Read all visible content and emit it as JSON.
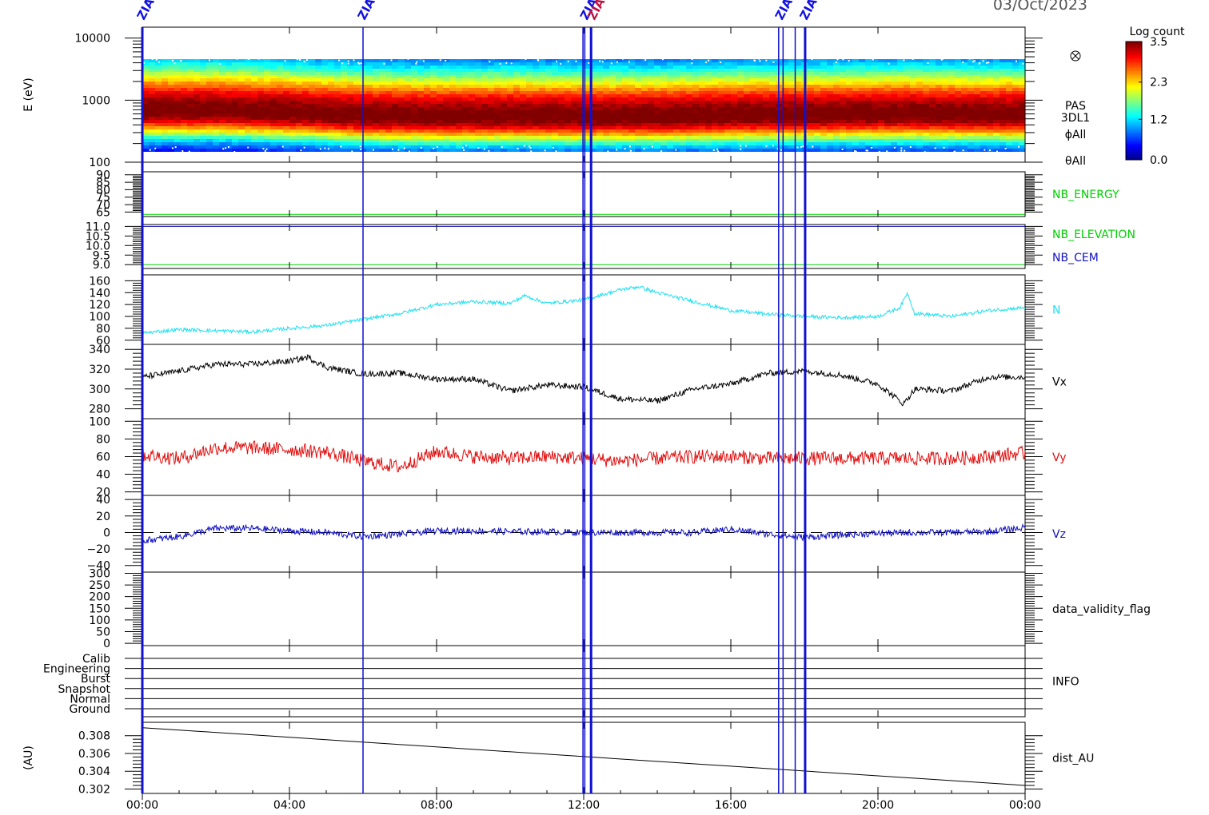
{
  "header": {
    "date": "03/Oct/2023"
  },
  "x_axis": {
    "tick_labels": [
      "00:00",
      "04:00",
      "08:00",
      "12:00",
      "16:00",
      "20:00",
      "00:00"
    ],
    "hours": [
      0,
      4,
      8,
      12,
      16,
      20,
      24
    ],
    "range_hours": [
      0,
      24
    ]
  },
  "markers": {
    "lines_hours": [
      0,
      6,
      11.98,
      12.03,
      12.2,
      17.3,
      17.42,
      17.75,
      18.02
    ],
    "labels": [
      {
        "hour": 0,
        "text": "ZIAS",
        "color": "#1010e0"
      },
      {
        "hour": 6,
        "text": "ZIAS",
        "color": "#1010e0"
      },
      {
        "hour": 12.05,
        "text": "ZIAS",
        "color": "#1010e0"
      },
      {
        "hour": 12.25,
        "text": "ZIAS",
        "color": "#c01040"
      },
      {
        "hour": 17.35,
        "text": "ZIAS",
        "color": "#1010e0"
      },
      {
        "hour": 18.02,
        "text": "ZIAS",
        "color": "#1010e0"
      }
    ]
  },
  "colorbar": {
    "title": "Log count",
    "tick_labels": [
      "3.5",
      "2.3",
      "1.2",
      "0.0"
    ],
    "range": [
      0.0,
      3.5
    ]
  },
  "chart_data": [
    {
      "type": "heatmap",
      "ylabel": "E (eV)",
      "yscale": "log",
      "ylim": [
        100,
        15000
      ],
      "y_tick_labels": [
        "10000",
        "1000",
        "100"
      ],
      "y_ticks": [
        10000,
        1000,
        100
      ],
      "right_labels": [
        "PAS",
        "3DL1",
        "ϕAll",
        "θAll"
      ],
      "peak_energy_eV": {
        "hours": [
          0,
          2,
          4,
          6,
          8,
          10,
          12,
          14,
          16,
          18,
          20,
          22,
          24
        ],
        "values": [
          700,
          700,
          650,
          580,
          560,
          570,
          560,
          560,
          590,
          600,
          620,
          610,
          600
        ]
      },
      "band_eV": [
        150,
        5000
      ]
    },
    {
      "type": "line",
      "right_label": "NB_ENERGY",
      "right_label_color": "#00d000",
      "ylim": [
        62,
        92
      ],
      "y_tick_labels": [
        "90",
        "85",
        "80",
        "75",
        "70",
        "65"
      ],
      "y_ticks": [
        90,
        85,
        80,
        75,
        70,
        65
      ],
      "series": [
        {
          "color": "#00d000",
          "x": [
            0,
            24
          ],
          "y": [
            63.5,
            63.5
          ]
        }
      ]
    },
    {
      "type": "line",
      "right_labels": [
        {
          "text": "NB_ELEVATION",
          "color": "#00d000"
        },
        {
          "text": "NB_CEM",
          "color": "#1010c0"
        }
      ],
      "ylim": [
        8.8,
        11.1
      ],
      "y_tick_labels": [
        "11.0",
        "10.5",
        "10.0",
        "9.5",
        "9.0"
      ],
      "y_ticks": [
        11.0,
        10.5,
        10.0,
        9.5,
        9.0
      ],
      "series": [
        {
          "color": "#1010c0",
          "x": [
            0,
            24
          ],
          "y": [
            11.0,
            11.0
          ]
        },
        {
          "color": "#00d000",
          "x": [
            0,
            24
          ],
          "y": [
            9.0,
            9.0
          ]
        }
      ]
    },
    {
      "type": "line",
      "right_label": "N",
      "right_label_color": "#20e0f0",
      "ylim": [
        53,
        170
      ],
      "y_tick_labels": [
        "160",
        "140",
        "120",
        "100",
        "80",
        "60"
      ],
      "y_ticks": [
        160,
        140,
        120,
        100,
        80,
        60
      ],
      "series": [
        {
          "color": "#20e0f0",
          "noise": 3,
          "x": [
            0,
            1,
            2,
            3,
            4,
            5,
            6,
            7,
            8,
            9,
            10,
            10.4,
            11,
            12,
            13,
            13.5,
            14,
            15,
            16,
            17,
            18,
            19,
            20,
            20.6,
            20.8,
            21,
            22,
            23,
            24
          ],
          "y": [
            72,
            78,
            76,
            74,
            80,
            85,
            95,
            105,
            120,
            125,
            122,
            135,
            122,
            128,
            145,
            150,
            140,
            125,
            110,
            104,
            100,
            98,
            100,
            115,
            140,
            105,
            100,
            110,
            115
          ]
        }
      ]
    },
    {
      "type": "line",
      "right_label": "Vx",
      "right_label_color": "#000000",
      "ylim": [
        270,
        345
      ],
      "y_tick_labels": [
        "340",
        "320",
        "300",
        "280"
      ],
      "y_ticks": [
        340,
        320,
        300,
        280
      ],
      "series": [
        {
          "color": "#000000",
          "noise": 3,
          "x": [
            0,
            1,
            2,
            3,
            4,
            4.5,
            5,
            6,
            7,
            8,
            9,
            10,
            11,
            12,
            13,
            14,
            15,
            16,
            17,
            18,
            19,
            20,
            20.7,
            21,
            22,
            23,
            24
          ],
          "y": [
            312,
            318,
            325,
            325,
            328,
            332,
            322,
            315,
            316,
            310,
            310,
            298,
            304,
            302,
            290,
            288,
            300,
            305,
            316,
            318,
            314,
            305,
            285,
            300,
            298,
            312,
            312
          ]
        }
      ]
    },
    {
      "type": "line",
      "right_label": "Vy",
      "right_label_color": "#e01010",
      "ylim": [
        16,
        103
      ],
      "y_tick_labels": [
        "100",
        "80",
        "60",
        "40",
        "20"
      ],
      "y_ticks": [
        100,
        80,
        60,
        40,
        20
      ],
      "series": [
        {
          "color": "#e01010",
          "noise": 8,
          "x": [
            0,
            1,
            2,
            3,
            4,
            5,
            6,
            7,
            8,
            9,
            10,
            11,
            12,
            13,
            14,
            15,
            16,
            17,
            18,
            19,
            20,
            21,
            22,
            23,
            24
          ],
          "y": [
            62,
            58,
            70,
            70,
            68,
            65,
            55,
            48,
            66,
            60,
            58,
            60,
            58,
            55,
            58,
            60,
            60,
            58,
            58,
            58,
            58,
            58,
            58,
            60,
            64
          ]
        }
      ]
    },
    {
      "type": "line",
      "right_label": "Vz",
      "right_label_color": "#1010c0",
      "ylim": [
        -48,
        45
      ],
      "y_tick_labels": [
        "40",
        "20",
        "0",
        "−20",
        "−40"
      ],
      "y_ticks": [
        40,
        20,
        0,
        -20,
        -40
      ],
      "zero_line": true,
      "series": [
        {
          "color": "#1010c0",
          "noise": 4,
          "x": [
            0,
            1,
            2,
            3,
            4,
            5,
            6,
            7,
            8,
            9,
            10,
            11,
            12,
            13,
            14,
            15,
            16,
            17,
            18,
            19,
            20,
            21,
            22,
            23,
            24
          ],
          "y": [
            -10,
            -5,
            5,
            5,
            2,
            0,
            -5,
            -2,
            2,
            2,
            1,
            1,
            0,
            0,
            0,
            0,
            4,
            -2,
            -6,
            -3,
            -1,
            0,
            0,
            1,
            6
          ]
        }
      ]
    },
    {
      "type": "line",
      "right_label": "data_validity_flag",
      "right_label_color": "#000000",
      "ylim": [
        -10,
        305
      ],
      "y_tick_labels": [
        "300",
        "250",
        "200",
        "150",
        "100",
        "50",
        "0"
      ],
      "y_ticks": [
        300,
        250,
        200,
        150,
        100,
        50,
        0
      ],
      "series": []
    },
    {
      "type": "line",
      "right_label": "INFO",
      "right_label_color": "#000000",
      "y_tick_labels": [
        "Calib",
        "Engineering",
        "Burst",
        "Snapshot",
        "Normal",
        "Ground"
      ],
      "series": []
    },
    {
      "type": "line",
      "ylabel": "(AU)",
      "right_label": "dist_AU",
      "right_label_color": "#000000",
      "ylim": [
        0.3015,
        0.3095
      ],
      "y_tick_labels": [
        "0.308",
        "0.306",
        "0.304",
        "0.302"
      ],
      "y_ticks": [
        0.308,
        0.306,
        0.304,
        0.302
      ],
      "series": [
        {
          "color": "#000000",
          "x": [
            0,
            24
          ],
          "y": [
            0.3089,
            0.3024
          ]
        }
      ]
    }
  ]
}
